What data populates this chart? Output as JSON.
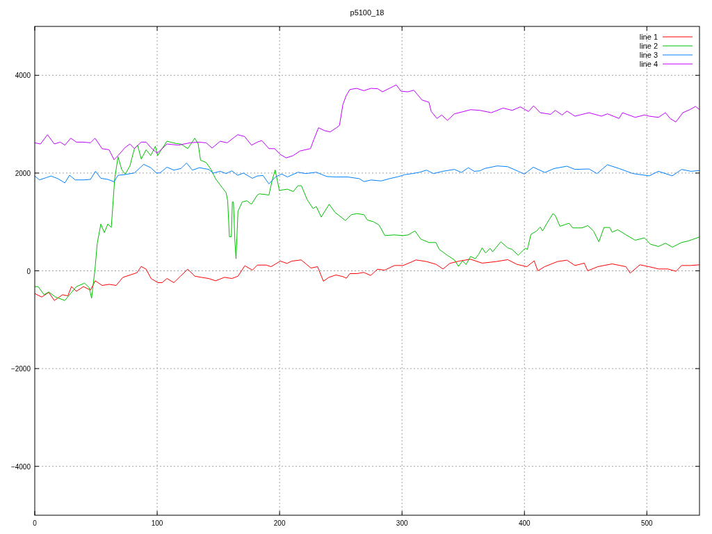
{
  "chart_data": {
    "type": "line",
    "title": "p5100_18",
    "xlim": [
      0,
      543
    ],
    "ylim": [
      -5000,
      5000
    ],
    "xticks": [
      0,
      100,
      200,
      300,
      400,
      500
    ],
    "yticks": [
      -4000,
      -2000,
      0,
      2000,
      4000
    ],
    "grid": true,
    "legend": "top right",
    "line_style": "solid",
    "marker": "none",
    "series": [
      {
        "name": "line 1",
        "color": "#ff0000",
        "x": [
          0,
          5.7,
          11.4,
          16,
          22.7,
          27,
          30,
          34,
          39.8,
          45.5,
          49.4,
          55,
          60.8,
          66.5,
          72,
          77.8,
          83.5,
          87,
          91,
          95,
          100.6,
          104,
          108,
          113.6,
          119,
          125,
          130.7,
          136,
          142,
          147.7,
          155,
          161,
          166,
          171.6,
          177.8,
          181.8,
          189,
          193,
          200.6,
          206,
          210,
          217.6,
          225.6,
          231,
          235.8,
          240.3,
          246,
          251.7,
          254.5,
          257.4,
          263,
          268.8,
          274.4,
          280,
          285.8,
          293.8,
          301,
          308.5,
          311.4,
          319.9,
          327.8,
          333.5,
          339,
          346.6,
          356,
          365.5,
          377,
          386.4,
          393.8,
          402,
          408,
          410.9,
          416.5,
          427,
          434.7,
          441.3,
          448.9,
          451.7,
          460,
          471.6,
          482.9,
          486.4,
          494.3,
          501.7,
          509.7,
          517,
          523.9,
          528.4,
          535.8,
          542.6
        ],
        "values": [
          -465,
          -536,
          -441,
          -607,
          -489,
          -512,
          -323,
          -418,
          -323,
          -394,
          -204,
          -299,
          -276,
          -299,
          -133,
          -86,
          -38,
          90,
          33,
          -157,
          -242,
          -242,
          -157,
          -242,
          -110,
          33,
          -110,
          -133,
          -157,
          -204,
          -133,
          -157,
          -110,
          104,
          14,
          118,
          118,
          85,
          199,
          152,
          199,
          223,
          57,
          85,
          -213,
          -133,
          -85,
          -118,
          -152,
          -57,
          -57,
          -33,
          -95,
          33,
          14,
          109,
          109,
          190,
          223,
          190,
          133,
          38,
          152,
          199,
          237,
          157,
          190,
          228,
          133,
          85,
          204,
          0,
          85,
          190,
          218,
          109,
          157,
          0,
          85,
          142,
          85,
          -47,
          123,
          85,
          38,
          38,
          -9,
          109,
          109,
          123
        ]
      },
      {
        "name": "line 2",
        "color": "#00c000",
        "x": [
          0,
          2.8,
          7.6,
          11.4,
          17,
          24.6,
          28.4,
          34,
          40.7,
          44.5,
          46.4,
          49.2,
          51,
          54,
          56.8,
          59.7,
          62.5,
          65.3,
          68,
          71,
          73.9,
          77.7,
          81.4,
          84,
          87,
          91,
          94.7,
          98.5,
          100.4,
          104,
          108,
          115.5,
          119.3,
          125,
          130.7,
          133.5,
          135.4,
          140,
          144,
          147.7,
          153.4,
          156.3,
          157.6,
          159,
          160.6,
          161.4,
          162.3,
          163.4,
          164.4,
          166,
          169.5,
          173.3,
          177,
          181.8,
          183.6,
          191.3,
          194,
          196.4,
          199.8,
          206.4,
          211.2,
          215,
          217.8,
          222.5,
          227.3,
          230,
          234,
          240.5,
          245.3,
          253.8,
          258.5,
          263.3,
          268.9,
          271.8,
          276.5,
          281.3,
          286,
          293.6,
          301,
          305,
          310.6,
          315.3,
          322,
          327.7,
          330.5,
          337,
          342.8,
          346.2,
          349.4,
          352.3,
          356,
          359.8,
          362.7,
          365.5,
          368.3,
          372,
          374,
          380.7,
          386.4,
          390,
          394.9,
          400.6,
          402.4,
          405.3,
          410,
          412.9,
          414.8,
          418.6,
          423.3,
          425.2,
          429,
          436.5,
          439.4,
          447,
          451.7,
          456.4,
          460.8,
          465,
          469.7,
          471.6,
          476.3,
          483,
          490.5,
          498,
          502.8,
          509.5,
          515.2,
          520.8,
          528.4,
          534,
          542.6
        ],
        "values": [
          -323,
          -323,
          -489,
          -432,
          -536,
          -607,
          -489,
          -323,
          -252,
          -347,
          -560,
          33,
          555,
          958,
          782,
          958,
          887,
          1883,
          2334,
          2073,
          1978,
          2144,
          2500,
          2571,
          2287,
          2476,
          2358,
          2547,
          2358,
          2500,
          2652,
          2604,
          2595,
          2500,
          2713,
          2595,
          2263,
          2216,
          2073,
          1883,
          1693,
          1598,
          1433,
          697,
          697,
          1409,
          1409,
          650,
          246,
          1220,
          1409,
          1433,
          1362,
          1551,
          1575,
          1551,
          1860,
          2063,
          1646,
          1670,
          1622,
          1741,
          1741,
          1456,
          1276,
          1314,
          1100,
          1362,
          1195,
          1029,
          1148,
          1171,
          1148,
          1038,
          1006,
          935,
          721,
          735,
          721,
          735,
          816,
          650,
          579,
          579,
          437,
          318,
          223,
          90,
          204,
          128,
          294,
          247,
          341,
          469,
          365,
          460,
          390,
          593,
          469,
          437,
          318,
          460,
          437,
          745,
          816,
          896,
          816,
          982,
          1171,
          1133,
          911,
          973,
          878,
          878,
          925,
          816,
          593,
          887,
          887,
          792,
          840,
          735,
          626,
          674,
          546,
          498,
          565,
          484,
          579,
          612,
          688
        ]
      },
      {
        "name": "line 3",
        "color": "#0080ff",
        "x": [
          0,
          3.8,
          9.5,
          13.3,
          19,
          24.6,
          28.4,
          33.1,
          39.8,
          45.5,
          49.6,
          54,
          59.7,
          64.8,
          68,
          73.9,
          81.4,
          89,
          94.7,
          99.4,
          102.3,
          108,
          113.6,
          119.3,
          124,
          128.8,
          134.5,
          142,
          145.8,
          151.5,
          156.3,
          161,
          165.8,
          170.5,
          177.7,
          181.8,
          186.5,
          191.3,
          196.6,
          201.7,
          206.4,
          215,
          221.6,
          230,
          238.6,
          246.2,
          255.7,
          265,
          269,
          274.6,
          283,
          289.8,
          297.3,
          302,
          308.7,
          314.4,
          320,
          325.7,
          333.3,
          342.8,
          348.5,
          354.2,
          358.9,
          363.6,
          367.4,
          377.8,
          386.4,
          394.9,
          400,
          407.2,
          416.7,
          424.3,
          434.7,
          441.3,
          452.7,
          459.3,
          467.8,
          477.3,
          488.6,
          501.9,
          509.5,
          520.8,
          528.4,
          536,
          542.6
        ],
        "values": [
          1940,
          1860,
          1908,
          1940,
          1884,
          1798,
          1955,
          1860,
          1860,
          1870,
          2036,
          1893,
          1870,
          1822,
          1955,
          1970,
          2003,
          2178,
          2110,
          2000,
          2003,
          2120,
          2060,
          2093,
          2205,
          2060,
          2110,
          2075,
          2000,
          2036,
          1990,
          2045,
          1955,
          2000,
          1893,
          1940,
          1950,
          1778,
          1920,
          1980,
          1920,
          2017,
          1990,
          2017,
          1929,
          1920,
          1920,
          1886,
          1825,
          1858,
          1839,
          1886,
          1929,
          1967,
          1990,
          2017,
          2060,
          1990,
          2036,
          2075,
          2012,
          2110,
          2036,
          2045,
          2093,
          2146,
          2130,
          2036,
          1980,
          2120,
          2012,
          2093,
          2140,
          2075,
          2084,
          1990,
          2170,
          2093,
          1990,
          1943,
          2036,
          1943,
          2075,
          2036,
          2050
        ]
      },
      {
        "name": "line 4",
        "color": "#c000ff",
        "x": [
          0,
          4.7,
          10.4,
          16,
          20.8,
          24.6,
          29.4,
          34,
          39.8,
          45.5,
          49.2,
          55,
          60.7,
          64.8,
          68,
          73.9,
          77.7,
          81.4,
          87,
          91,
          94.7,
          100,
          108,
          117.4,
          126.8,
          133.5,
          140,
          144.9,
          151.5,
          157.2,
          165.8,
          171.4,
          177.1,
          181.8,
          185.5,
          191.3,
          196,
          200.6,
          205.4,
          211,
          216.7,
          225.2,
          228,
          231.8,
          236.5,
          241.3,
          247,
          248.9,
          251.7,
          254.5,
          257.4,
          263,
          268.8,
          274.5,
          280.2,
          284,
          289.7,
          295.3,
          299.2,
          304.9,
          309.6,
          316.3,
          322,
          323.9,
          328.6,
          332.4,
          337.1,
          342.8,
          350.4,
          356,
          363.6,
          373,
          382.5,
          390,
          396.6,
          403.4,
          407.5,
          412.9,
          421.4,
          425.2,
          430.8,
          434.7,
          441.3,
          452.7,
          463,
          467.8,
          477.3,
          480.1,
          490.5,
          498,
          501.9,
          509.5,
          515.2,
          519,
          523.7,
          529.4,
          535.1,
          539.8,
          542.6
        ],
        "values": [
          2619,
          2595,
          2785,
          2595,
          2633,
          2571,
          2713,
          2633,
          2633,
          2619,
          2713,
          2500,
          2476,
          2273,
          2358,
          2524,
          2595,
          2500,
          2633,
          2633,
          2524,
          2405,
          2595,
          2571,
          2619,
          2633,
          2619,
          2512,
          2652,
          2619,
          2785,
          2748,
          2571,
          2633,
          2665,
          2500,
          2500,
          2381,
          2310,
          2357,
          2452,
          2500,
          2689,
          2927,
          2870,
          2842,
          2936,
          2974,
          3401,
          3590,
          3709,
          3733,
          3685,
          3733,
          3725,
          3662,
          3733,
          3804,
          3674,
          3662,
          3695,
          3496,
          3448,
          3259,
          3117,
          3188,
          3078,
          3212,
          3259,
          3297,
          3283,
          3235,
          3330,
          3283,
          3354,
          3259,
          3377,
          3235,
          3202,
          3283,
          3188,
          3268,
          3164,
          3235,
          3164,
          3212,
          3117,
          3235,
          3140,
          3188,
          3164,
          3140,
          3235,
          3117,
          3045,
          3235,
          3297,
          3363,
          3306
        ]
      }
    ]
  }
}
